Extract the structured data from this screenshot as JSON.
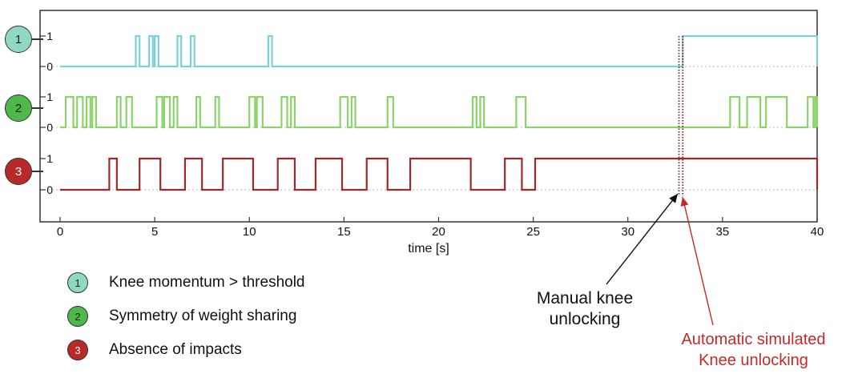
{
  "chart_data": {
    "type": "line",
    "xlabel": "time [s]",
    "xlim": [
      0,
      40
    ],
    "x_ticks": [
      "0",
      "5",
      "10",
      "15",
      "20",
      "25",
      "30",
      "35",
      "40"
    ],
    "y_ticks": [
      "0",
      "1"
    ],
    "markers": [
      {
        "x": 32.7,
        "style": "dotted",
        "color": "#555555"
      },
      {
        "x": 32.9,
        "style": "dotted",
        "color": "#aa2222"
      }
    ],
    "series": [
      {
        "name": "Knee momentum > threshold",
        "number": "1",
        "color": "#7ecfd8",
        "circle_color": "#8fd9c4",
        "rises": [
          4.0,
          4.7,
          5.0,
          6.2,
          6.9,
          11.0,
          32.9
        ],
        "falls": [
          4.2,
          4.9,
          5.2,
          6.4,
          7.1,
          11.2,
          40.0
        ]
      },
      {
        "name": "Symmetry of weight sharing",
        "number": "2",
        "color": "#8cd26a",
        "circle_color": "#4fb84a",
        "rises": [
          0.3,
          0.9,
          1.4,
          1.7,
          3.0,
          3.5,
          5.1,
          5.5,
          6.0,
          7.2,
          8.2,
          10.0,
          10.4,
          11.7,
          12.2,
          14.8,
          15.4,
          17.3,
          21.8,
          22.2,
          24.1,
          35.4,
          36.3,
          37.3,
          39.5,
          39.9
        ],
        "falls": [
          0.7,
          1.2,
          1.6,
          1.9,
          3.2,
          3.8,
          5.4,
          5.8,
          6.2,
          7.4,
          8.4,
          10.3,
          10.7,
          12.0,
          12.4,
          15.2,
          15.6,
          17.6,
          22.0,
          22.4,
          24.6,
          35.9,
          37.0,
          38.4,
          39.8,
          40.0
        ]
      },
      {
        "name": "Absence of impacts",
        "number": "3",
        "color": "#a02828",
        "circle_color": "#b82a2a",
        "rises": [
          2.6,
          4.2,
          6.6,
          8.6,
          11.5,
          13.5,
          16.2,
          18.5,
          23.5,
          25.1
        ],
        "falls": [
          3.0,
          5.3,
          7.5,
          10.2,
          12.4,
          14.9,
          17.3,
          21.7,
          24.4,
          40.0
        ]
      }
    ]
  },
  "annotations": {
    "manual": [
      "Manual knee",
      "unlocking"
    ],
    "automatic": [
      "Automatic simulated",
      "Knee unlocking"
    ],
    "manual_color": "#111111",
    "automatic_color": "#c42a2a"
  }
}
